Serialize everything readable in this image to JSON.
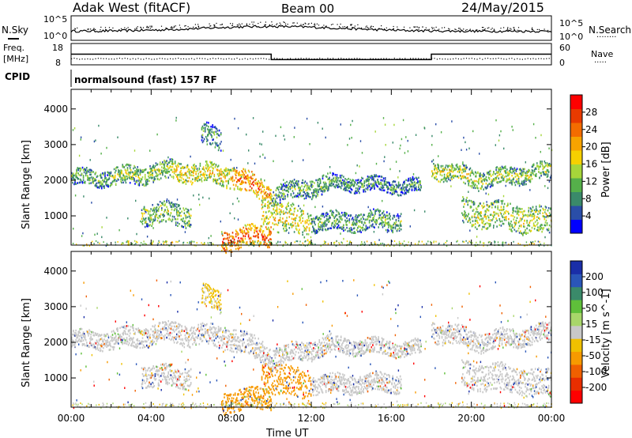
{
  "header": {
    "station": "Adak West (fitACF)",
    "beam": "Beam 00",
    "date": "24/May/2015"
  },
  "summary_panels": {
    "nsky_label": "N.Sky",
    "nsearch_label": "N.Search",
    "freq_label_line1": "Freq.",
    "freq_label_line2": "[MHz]",
    "nave_label": "Nave",
    "cpid_label": "CPID",
    "cpid_value": "normalsound (fast) 157 RF",
    "noise_ticks_left": [
      "10^5",
      "10^0"
    ],
    "noise_ticks_right": [
      "10^5",
      "10^0"
    ],
    "freq_ticks": [
      "18",
      "8"
    ],
    "nave_ticks": [
      "60",
      "0"
    ],
    "freq_trace": [
      {
        "x": 0.0,
        "value": 13.0
      },
      {
        "x": 10.0,
        "value": 13.0
      },
      {
        "x": 10.0,
        "value": 10.0
      },
      {
        "x": 18.0,
        "value": 10.0
      },
      {
        "x": 18.0,
        "value": 13.0
      },
      {
        "x": 24.0,
        "value": 13.0
      }
    ]
  },
  "colorbars": {
    "power": {
      "title": "Power [dB]",
      "ticks": [
        "28",
        "24",
        "20",
        "16",
        "12",
        "8",
        "4"
      ],
      "colors": [
        "#0000ff",
        "#2a4ea8",
        "#3a8a6a",
        "#55b04a",
        "#a6d63a",
        "#f6d000",
        "#f7a300",
        "#f46c00",
        "#e83a00",
        "#ff0000"
      ]
    },
    "velocity": {
      "title": "Velocity [m s^-1]",
      "ticks": [
        "200",
        "100",
        "50",
        "15",
        "-15",
        "-50",
        "-100",
        "-200"
      ],
      "colors": [
        "#1a2ea8",
        "#2a56b8",
        "#3a8a6a",
        "#5fbf3a",
        "#a8d66a",
        "#c8c8c8",
        "#f0c000",
        "#f79a00",
        "#f06000",
        "#e82e00",
        "#ff0000"
      ]
    }
  },
  "chart_data": [
    {
      "type": "heatmap",
      "name": "power",
      "ylabel": "Slant Range [km]",
      "xlabel": "Time UT",
      "x_ticks": [
        "00:00",
        "04:00",
        "08:00",
        "12:00",
        "16:00",
        "20:00",
        "00:00"
      ],
      "y_ticks": [
        "4000",
        "3000",
        "2000",
        "1000"
      ],
      "xlim": [
        0,
        24
      ],
      "ylim": [
        180,
        4550
      ],
      "scale_label": "Power [dB]",
      "scatter_bands": [
        {
          "from": 0.0,
          "to": 2.0,
          "center_start": 2050,
          "center_end": 2050,
          "width": 220,
          "value": 12
        },
        {
          "from": 2.0,
          "to": 5.0,
          "center_start": 2050,
          "center_end": 2250,
          "width": 260,
          "value": 14
        },
        {
          "from": 5.0,
          "to": 8.0,
          "center_start": 2250,
          "center_end": 2100,
          "width": 280,
          "value": 18
        },
        {
          "from": 8.0,
          "to": 10.0,
          "center_start": 2100,
          "center_end": 1600,
          "width": 300,
          "value": 24
        },
        {
          "from": 10.0,
          "to": 13.0,
          "center_start": 1550,
          "center_end": 1900,
          "width": 260,
          "value": 12
        },
        {
          "from": 13.0,
          "to": 17.5,
          "center_start": 1900,
          "center_end": 1800,
          "width": 200,
          "value": 10
        },
        {
          "from": 18.0,
          "to": 20.5,
          "center_start": 2300,
          "center_end": 2000,
          "width": 260,
          "value": 16
        },
        {
          "from": 20.5,
          "to": 24.0,
          "center_start": 2000,
          "center_end": 2250,
          "width": 240,
          "value": 14
        },
        {
          "from": 3.5,
          "to": 6.0,
          "center_start": 1050,
          "center_end": 1000,
          "width": 300,
          "value": 14
        },
        {
          "from": 9.5,
          "to": 12.0,
          "center_start": 1100,
          "center_end": 700,
          "width": 420,
          "value": 18
        },
        {
          "from": 12.0,
          "to": 16.5,
          "center_start": 800,
          "center_end": 850,
          "width": 260,
          "value": 12
        },
        {
          "from": 19.5,
          "to": 24.0,
          "center_start": 1100,
          "center_end": 800,
          "width": 380,
          "value": 16
        },
        {
          "from": 7.5,
          "to": 10.0,
          "center_start": 300,
          "center_end": 450,
          "width": 300,
          "value": 26
        },
        {
          "from": 6.5,
          "to": 7.5,
          "center_start": 3300,
          "center_end": 3100,
          "width": 300,
          "value": 10
        }
      ]
    },
    {
      "type": "heatmap",
      "name": "velocity",
      "ylabel": "Slant Range [km]",
      "xlabel": "Time UT",
      "x_ticks": [
        "00:00",
        "04:00",
        "08:00",
        "12:00",
        "16:00",
        "20:00",
        "00:00"
      ],
      "y_ticks": [
        "4000",
        "3000",
        "2000",
        "1000"
      ],
      "xlim": [
        0,
        24
      ],
      "ylim": [
        180,
        4550
      ],
      "scale_label": "Velocity [m s^-1]",
      "scatter_bands": [
        {
          "from": 0.0,
          "to": 2.0,
          "center_start": 2050,
          "center_end": 2050,
          "width": 240,
          "value": 0
        },
        {
          "from": 2.0,
          "to": 5.0,
          "center_start": 2050,
          "center_end": 2250,
          "width": 280,
          "value": 0
        },
        {
          "from": 5.0,
          "to": 8.0,
          "center_start": 2250,
          "center_end": 2100,
          "width": 300,
          "value": 0
        },
        {
          "from": 8.0,
          "to": 10.0,
          "center_start": 2100,
          "center_end": 1600,
          "width": 320,
          "value": 0
        },
        {
          "from": 10.0,
          "to": 13.0,
          "center_start": 1550,
          "center_end": 1900,
          "width": 260,
          "value": 0
        },
        {
          "from": 13.0,
          "to": 17.5,
          "center_start": 1900,
          "center_end": 1800,
          "width": 220,
          "value": 0
        },
        {
          "from": 18.0,
          "to": 20.5,
          "center_start": 2300,
          "center_end": 2000,
          "width": 280,
          "value": 0
        },
        {
          "from": 20.5,
          "to": 24.0,
          "center_start": 2000,
          "center_end": 2250,
          "width": 260,
          "value": 0
        },
        {
          "from": 3.5,
          "to": 6.0,
          "center_start": 1050,
          "center_end": 1000,
          "width": 300,
          "value": 0
        },
        {
          "from": 9.5,
          "to": 12.0,
          "center_start": 1100,
          "center_end": 700,
          "width": 420,
          "value": -60
        },
        {
          "from": 12.0,
          "to": 16.5,
          "center_start": 800,
          "center_end": 850,
          "width": 260,
          "value": 0
        },
        {
          "from": 19.5,
          "to": 24.0,
          "center_start": 1100,
          "center_end": 800,
          "width": 380,
          "value": 0
        },
        {
          "from": 7.5,
          "to": 10.0,
          "center_start": 300,
          "center_end": 450,
          "width": 300,
          "value": -80
        },
        {
          "from": 6.5,
          "to": 7.5,
          "center_start": 3300,
          "center_end": 3100,
          "width": 300,
          "value": -20
        }
      ]
    }
  ]
}
